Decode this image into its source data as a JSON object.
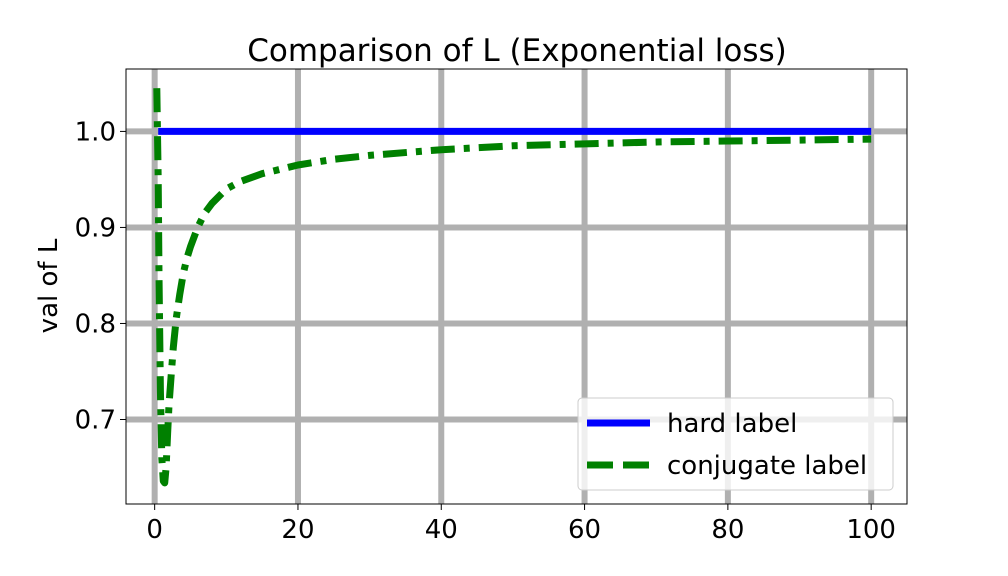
{
  "chart_data": {
    "type": "line",
    "title": "Comparison of L (Exponential loss)",
    "xlabel": "",
    "ylabel": "val of L",
    "xlim": [
      -4,
      105
    ],
    "ylim": [
      0.612,
      1.065
    ],
    "xticks": [
      0,
      20,
      40,
      60,
      80,
      100
    ],
    "yticks": [
      0.7,
      0.8,
      0.9,
      1.0
    ],
    "xtick_labels": [
      "0",
      "20",
      "40",
      "60",
      "80",
      "100"
    ],
    "ytick_labels": [
      "0.7",
      "0.8",
      "0.9",
      "1.0"
    ],
    "grid": true,
    "legend_position": "lower-right",
    "series": [
      {
        "name": "hard label",
        "color": "#0000ff",
        "style": "solid",
        "x": [
          0.5,
          100
        ],
        "y": [
          1.0,
          1.0
        ]
      },
      {
        "name": "conjugate label",
        "color": "#008000",
        "style": "dashdot",
        "x": [
          0.3,
          0.5,
          0.6,
          0.8,
          1.0,
          1.2,
          1.4,
          1.6,
          1.8,
          2.0,
          2.3,
          2.6,
          3.0,
          3.5,
          4.0,
          4.5,
          5.0,
          6.0,
          7.0,
          8.0,
          10.0,
          12.0,
          15.0,
          20.0,
          25.0,
          30.0,
          40.0,
          50.0,
          60.0,
          70.0,
          80.0,
          90.0,
          100.0
        ],
        "y": [
          1.045,
          0.95,
          0.85,
          0.73,
          0.66,
          0.636,
          0.634,
          0.65,
          0.685,
          0.715,
          0.745,
          0.775,
          0.805,
          0.83,
          0.852,
          0.868,
          0.88,
          0.9,
          0.915,
          0.925,
          0.94,
          0.948,
          0.956,
          0.965,
          0.971,
          0.975,
          0.981,
          0.985,
          0.987,
          0.989,
          0.99,
          0.991,
          0.992
        ]
      }
    ]
  }
}
